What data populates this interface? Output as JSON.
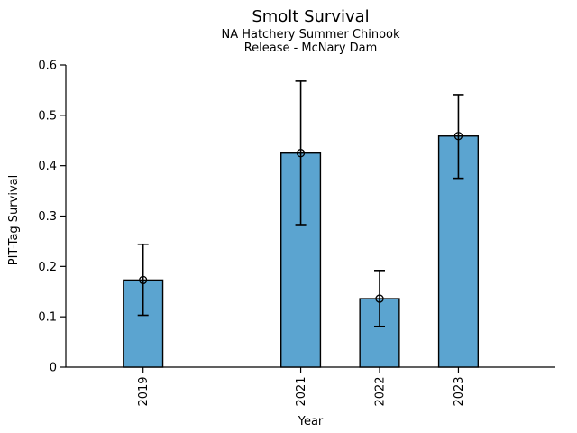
{
  "figure": {
    "title": "Smolt Survival",
    "subtitle_line1": "NA Hatchery Summer Chinook",
    "subtitle_line2": "Release - McNary Dam"
  },
  "chart_data": {
    "type": "bar",
    "title": "Smolt Survival",
    "subtitle": [
      "NA Hatchery Summer Chinook",
      "Release - McNary Dam"
    ],
    "xlabel": "Year",
    "ylabel": "PIT-Tag Survival",
    "categories": [
      2019,
      2021,
      2022,
      2023
    ],
    "x_tick_labels": [
      "2019",
      "2021",
      "2022",
      "2023"
    ],
    "series": [
      {
        "name": "PIT-Tag Survival",
        "values": [
          0.173,
          0.425,
          0.136,
          0.459
        ],
        "error_low": [
          0.103,
          0.283,
          0.081,
          0.375
        ],
        "error_high": [
          0.244,
          0.568,
          0.192,
          0.541
        ]
      }
    ],
    "xlim": [
      2018.02,
      2024.23
    ],
    "ylim": [
      0,
      0.6
    ],
    "yticks": [
      0,
      0.1,
      0.2,
      0.3,
      0.4,
      0.5,
      0.6
    ],
    "y_tick_labels": [
      "0",
      "0.1",
      "0.2",
      "0.3",
      "0.4",
      "0.5",
      "0.6"
    ],
    "bar_width_years": 0.5,
    "bar_color": "#5BA4D0",
    "bar_edge_color": "#000000",
    "error_color": "#000000",
    "marker": "open-circle",
    "grid": false,
    "legend_position": "none",
    "note": "year 2020 absent from x axis (gap between 2019 and 2021)"
  }
}
